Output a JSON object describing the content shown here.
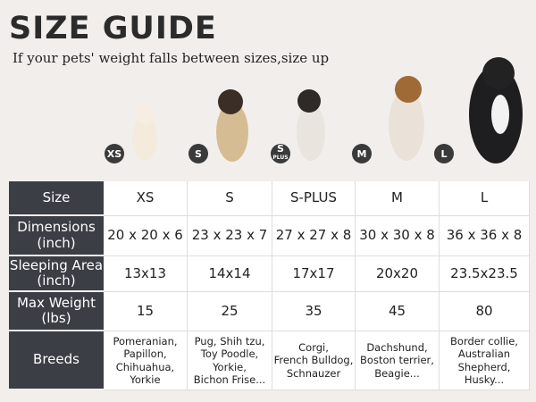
{
  "header": {
    "title": "SIZE GUIDE",
    "subtitle": "If your pets' weight falls between sizes,size up"
  },
  "badges": [
    [
      "XS"
    ],
    [
      "S"
    ],
    [
      "S",
      "PLUS"
    ],
    [
      "M"
    ],
    [
      "L"
    ]
  ],
  "table": {
    "header": [
      "Size",
      "XS",
      "S",
      "S-PLUS",
      "M",
      "L"
    ],
    "rows": [
      {
        "label": [
          "Dimensions",
          "(inch)"
        ],
        "cells": [
          [
            "20 x 20 x 6"
          ],
          [
            "23 x 23 x 7"
          ],
          [
            "27 x 27 x 8"
          ],
          [
            "30 x 30 x 8"
          ],
          [
            "36 x 36 x 8"
          ]
        ]
      },
      {
        "label": [
          "Sleeping Area",
          "(inch)"
        ],
        "cells": [
          [
            "13x13"
          ],
          [
            "14x14"
          ],
          [
            "17x17"
          ],
          [
            "20x20"
          ],
          [
            "23.5x23.5"
          ]
        ]
      },
      {
        "label": [
          "Max Weight",
          "(lbs)"
        ],
        "cells": [
          [
            "15"
          ],
          [
            "25"
          ],
          [
            "35"
          ],
          [
            "45"
          ],
          [
            "80"
          ]
        ]
      },
      {
        "label": [
          "Breeds"
        ],
        "cells": [
          [
            "Pomeranian,",
            "Papillon,",
            "Chihuahua,",
            "Yorkie"
          ],
          [
            "Pug, Shih tzu,",
            "Toy Poodle,",
            "Yorkie,",
            "Bichon Frise..."
          ],
          [
            "Corgi,",
            "French Bulldog,",
            "Schnauzer"
          ],
          [
            "Dachshund,",
            "Boston terrier,",
            "Beagie..."
          ],
          [
            "Border collie,",
            "Australian",
            "Shepherd,",
            "Husky..."
          ]
        ]
      }
    ]
  }
}
